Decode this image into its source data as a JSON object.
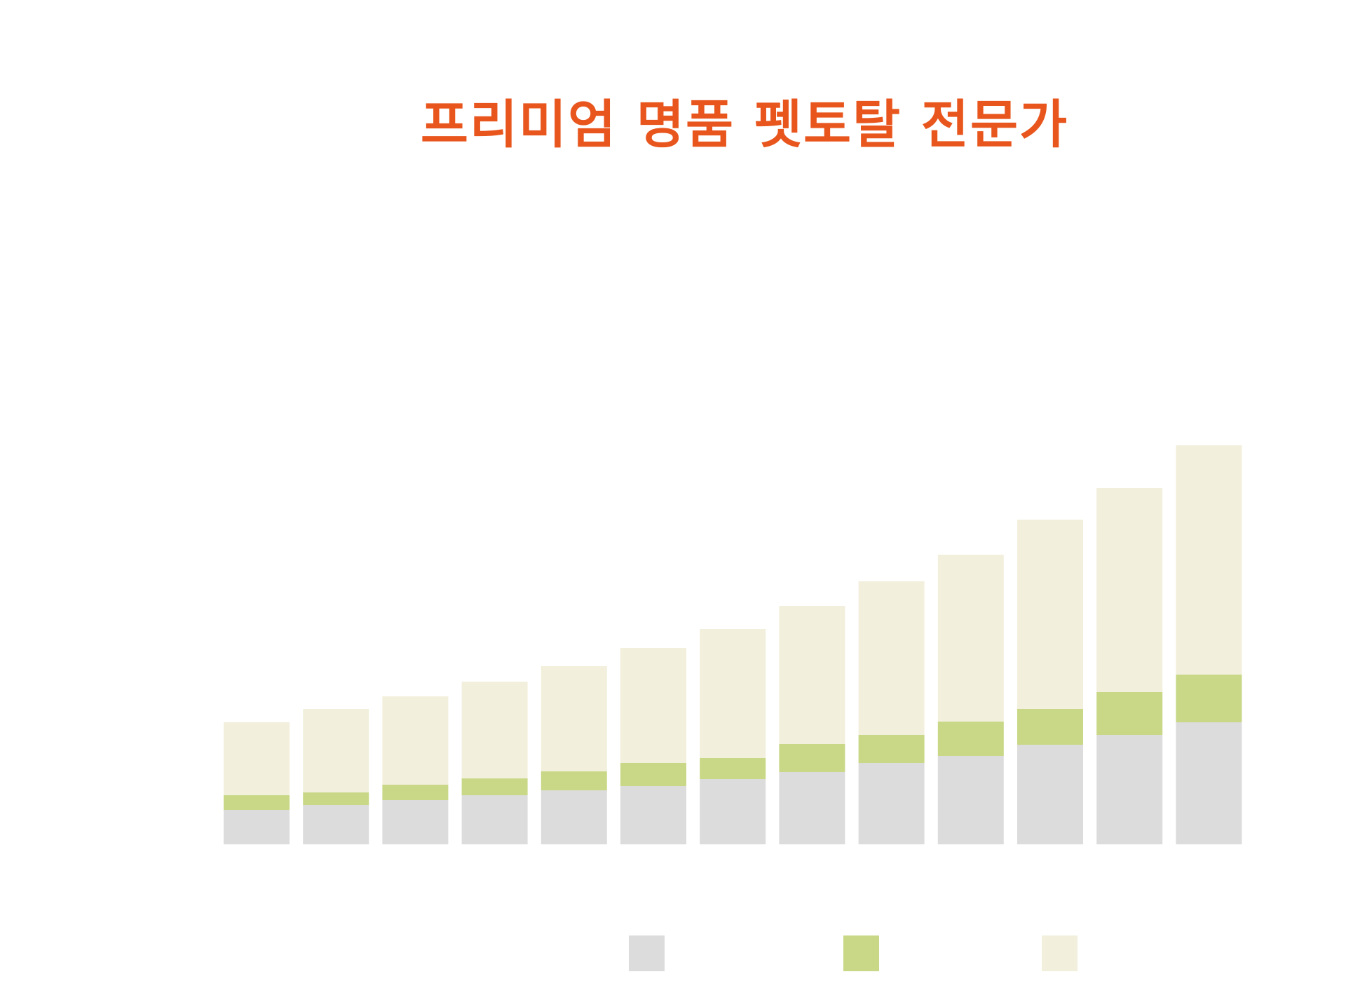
{
  "chart_data": {
    "type": "bar",
    "stacked": true,
    "title": "프리미엄 명품 펫토탈 전문가",
    "categories": [
      "",
      "",
      "",
      "",
      "",
      "",
      "",
      "",
      "",
      "",
      "",
      "",
      ""
    ],
    "series": [
      {
        "color": "#dcdcdc",
        "values": [
          49,
          56,
          63,
          70,
          77,
          83,
          93,
          103,
          116,
          126,
          142,
          156,
          174
        ]
      },
      {
        "color": "#c8d886",
        "values": [
          21,
          18,
          22,
          24,
          27,
          33,
          30,
          40,
          40,
          49,
          51,
          61,
          68
        ]
      },
      {
        "color": "#f2efdc",
        "values": [
          104,
          119,
          126,
          138,
          150,
          164,
          184,
          197,
          219,
          238,
          270,
          291,
          327
        ]
      }
    ],
    "ylim": [
      0,
      569
    ],
    "grid": false,
    "legend": "bottom"
  }
}
